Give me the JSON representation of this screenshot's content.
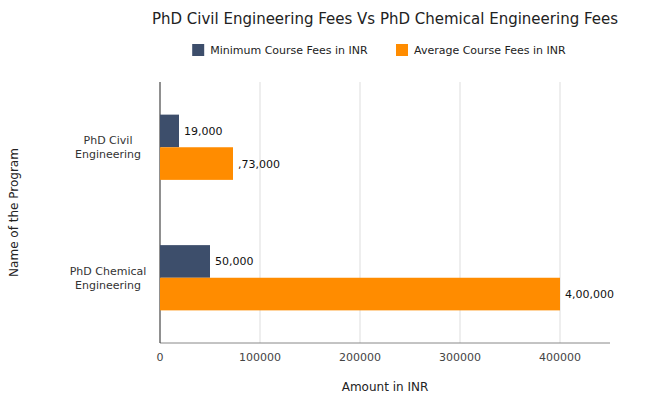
{
  "chart_data": {
    "type": "bar",
    "orientation": "horizontal",
    "title": "PhD Civil Engineering Fees Vs PhD Chemical Engineering Fees",
    "x_label": "Amount in INR",
    "y_label": "Name of the Program",
    "categories": [
      "PhD Chemical\nEngineering",
      "PhD Civil\nEngineering"
    ],
    "series": [
      {
        "name": "Minimum Course Fees in INR",
        "color": "#3d4e6b",
        "values": [
          50000,
          19000
        ],
        "value_labels": [
          "50,000",
          "19,000"
        ]
      },
      {
        "name": "Average Course Fees in INR",
        "color": "#ff8c00",
        "values": [
          400000,
          73000
        ],
        "value_labels": [
          "4,00,000",
          ",73,000"
        ]
      }
    ],
    "xlim": [
      0,
      450000
    ],
    "xticks": [
      0,
      100000,
      200000,
      300000,
      400000
    ],
    "grid": true,
    "legend": "top",
    "data_labels": true
  }
}
